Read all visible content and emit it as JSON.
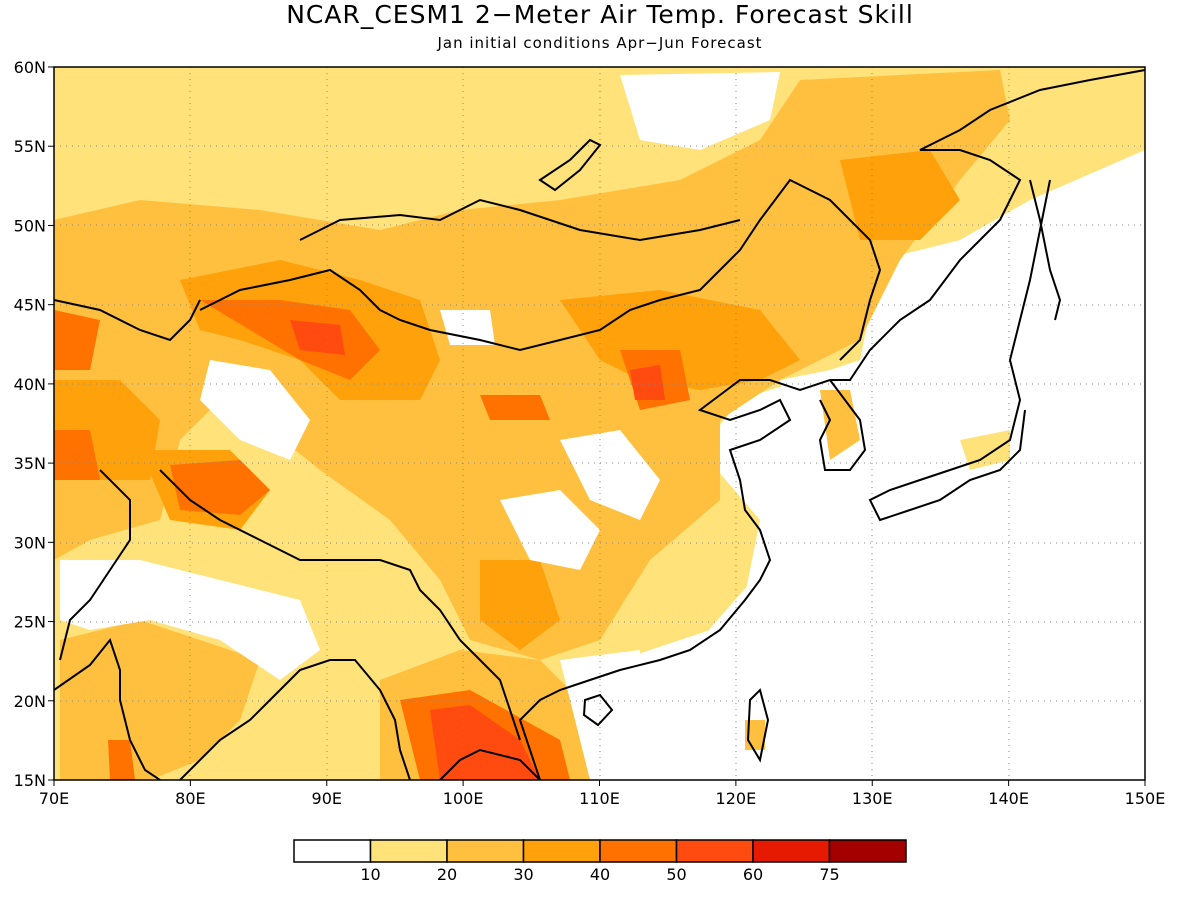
{
  "map": {
    "title": "NCAR_CESM1 2−Meter Air Temp. Forecast Skill",
    "subtitle": "Jan initial conditions  Apr−Jun Forecast",
    "region": "East and South Asia",
    "lon_range": [
      70,
      150
    ],
    "lat_range": [
      15,
      60
    ],
    "lon_ticks": [
      "70E",
      "80E",
      "90E",
      "100E",
      "110E",
      "120E",
      "130E",
      "140E",
      "150E"
    ],
    "lat_ticks": [
      "15N",
      "20N",
      "25N",
      "30N",
      "35N",
      "40N",
      "45N",
      "50N",
      "55N",
      "60N"
    ],
    "grid": "dotted",
    "colors": {
      "c0": "#ffffff",
      "c10": "#ffe27a",
      "c20": "#ffc040",
      "c30": "#ffa10a",
      "c40": "#ff7200",
      "c50": "#ff4a10",
      "c60": "#e61a00",
      "c75": "#a40000"
    }
  },
  "colorbar": {
    "labels": [
      "10",
      "20",
      "30",
      "40",
      "50",
      "60",
      "75"
    ],
    "colors": [
      "#ffffff",
      "#ffe27a",
      "#ffc040",
      "#ffa10a",
      "#ff7200",
      "#ff4a10",
      "#e61a00",
      "#a40000"
    ]
  }
}
